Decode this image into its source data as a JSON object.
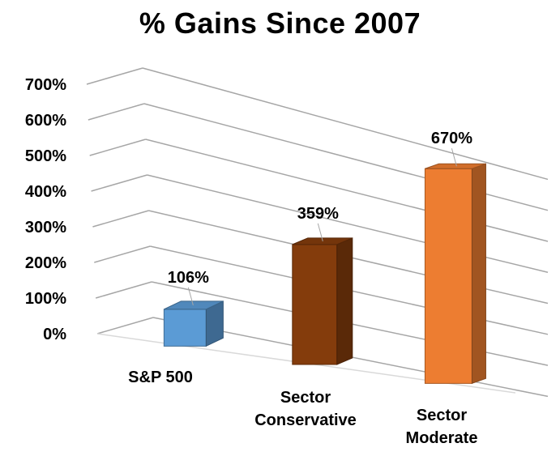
{
  "chart_data": {
    "type": "bar",
    "title": "% Gains Since 2007",
    "xlabel": "",
    "ylabel": "",
    "categories": [
      "S&P 500",
      "Sector Conservative",
      "Sector Moderate"
    ],
    "category_lines": [
      [
        "S&P 500"
      ],
      [
        "Sector",
        "Conservative"
      ],
      [
        "Sector",
        "Moderate"
      ]
    ],
    "values": [
      106,
      359,
      670
    ],
    "data_labels": [
      "106%",
      "359%",
      "670%"
    ],
    "y_ticks": [
      "0%",
      "100%",
      "200%",
      "300%",
      "400%",
      "500%",
      "600%",
      "700%"
    ],
    "ylim": [
      0,
      700
    ],
    "grid": true,
    "legend": "none",
    "style": "3d-column",
    "colors": [
      "#5b9bd5",
      "#843c0c",
      "#ed7d31"
    ]
  }
}
